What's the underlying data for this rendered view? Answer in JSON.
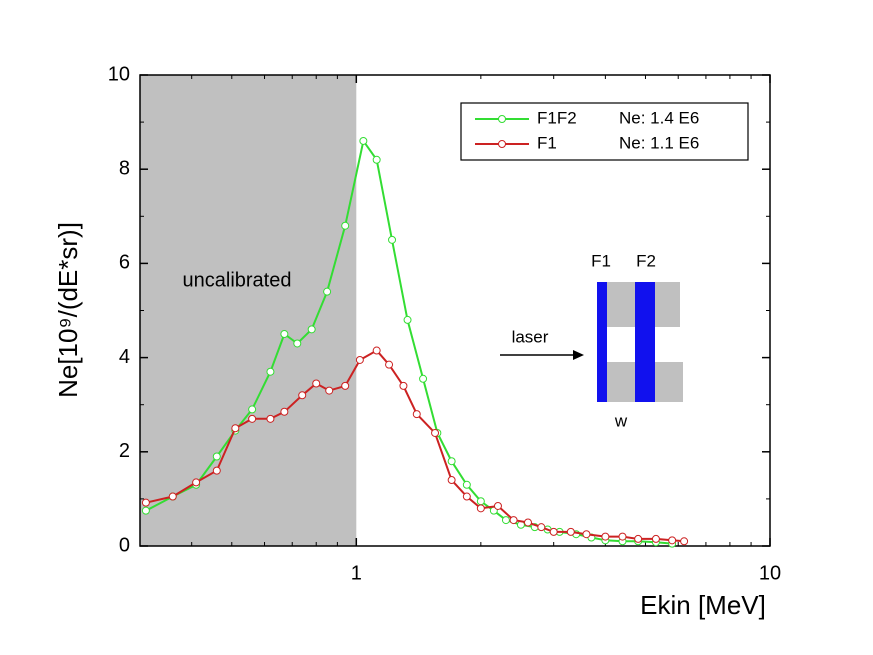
{
  "chart_data": {
    "type": "line",
    "xlabel": "Ekin [MeV]",
    "ylabel": "Ne[10⁹/(dE*sr)]",
    "xlim": [
      0.3,
      10
    ],
    "xscale": "log",
    "xticks": [
      1,
      10
    ],
    "xminorticks": [
      0.4,
      0.5,
      0.6,
      0.7,
      0.8,
      0.9,
      2,
      3,
      4,
      5,
      6,
      7,
      8,
      9
    ],
    "ylim": [
      0,
      10
    ],
    "yticks": [
      0,
      2,
      4,
      6,
      8,
      10
    ],
    "yminorticks": [
      1,
      3,
      5,
      7,
      9
    ],
    "shaded_region": {
      "x": [
        0.3,
        1
      ],
      "color": "#c0c0c0",
      "label": "uncalibrated"
    },
    "legend_position": "upper right",
    "series": [
      {
        "name": "F1F2",
        "note": "Ne: 1.4 E6",
        "color": "#33dd33",
        "x": [
          0.31,
          0.36,
          0.41,
          0.46,
          0.51,
          0.56,
          0.62,
          0.67,
          0.72,
          0.78,
          0.85,
          0.94,
          1.04,
          1.12,
          1.22,
          1.33,
          1.45,
          1.57,
          1.7,
          1.85,
          2.0,
          2.15,
          2.3,
          2.5,
          2.7,
          2.9,
          3.1,
          3.4,
          3.7,
          4.0,
          4.4,
          4.8,
          5.3,
          5.8
        ],
        "values": [
          0.75,
          1.05,
          1.3,
          1.9,
          2.45,
          2.9,
          3.7,
          4.5,
          4.3,
          4.6,
          5.4,
          6.8,
          8.6,
          8.2,
          6.5,
          4.8,
          3.55,
          2.4,
          1.8,
          1.3,
          0.95,
          0.75,
          0.55,
          0.45,
          0.4,
          0.35,
          0.3,
          0.25,
          0.18,
          0.12,
          0.1,
          0.1,
          0.08,
          0.05
        ]
      },
      {
        "name": "F1",
        "note": "Ne: 1.1 E6",
        "color": "#cc2222",
        "x": [
          0.31,
          0.36,
          0.41,
          0.46,
          0.51,
          0.56,
          0.62,
          0.67,
          0.74,
          0.8,
          0.86,
          0.94,
          1.02,
          1.12,
          1.2,
          1.3,
          1.4,
          1.55,
          1.7,
          1.85,
          2.0,
          2.2,
          2.4,
          2.6,
          2.8,
          3.0,
          3.3,
          3.6,
          4.0,
          4.4,
          4.8,
          5.3,
          5.8,
          6.2
        ],
        "values": [
          0.92,
          1.05,
          1.35,
          1.6,
          2.5,
          2.7,
          2.7,
          2.85,
          3.2,
          3.45,
          3.3,
          3.4,
          3.95,
          4.15,
          3.85,
          3.4,
          2.8,
          2.4,
          1.4,
          1.05,
          0.8,
          0.85,
          0.55,
          0.5,
          0.4,
          0.3,
          0.3,
          0.25,
          0.2,
          0.2,
          0.15,
          0.15,
          0.12,
          0.1
        ]
      }
    ],
    "inset": {
      "labels": [
        "F1",
        "F2",
        "laser",
        "w"
      ]
    }
  }
}
